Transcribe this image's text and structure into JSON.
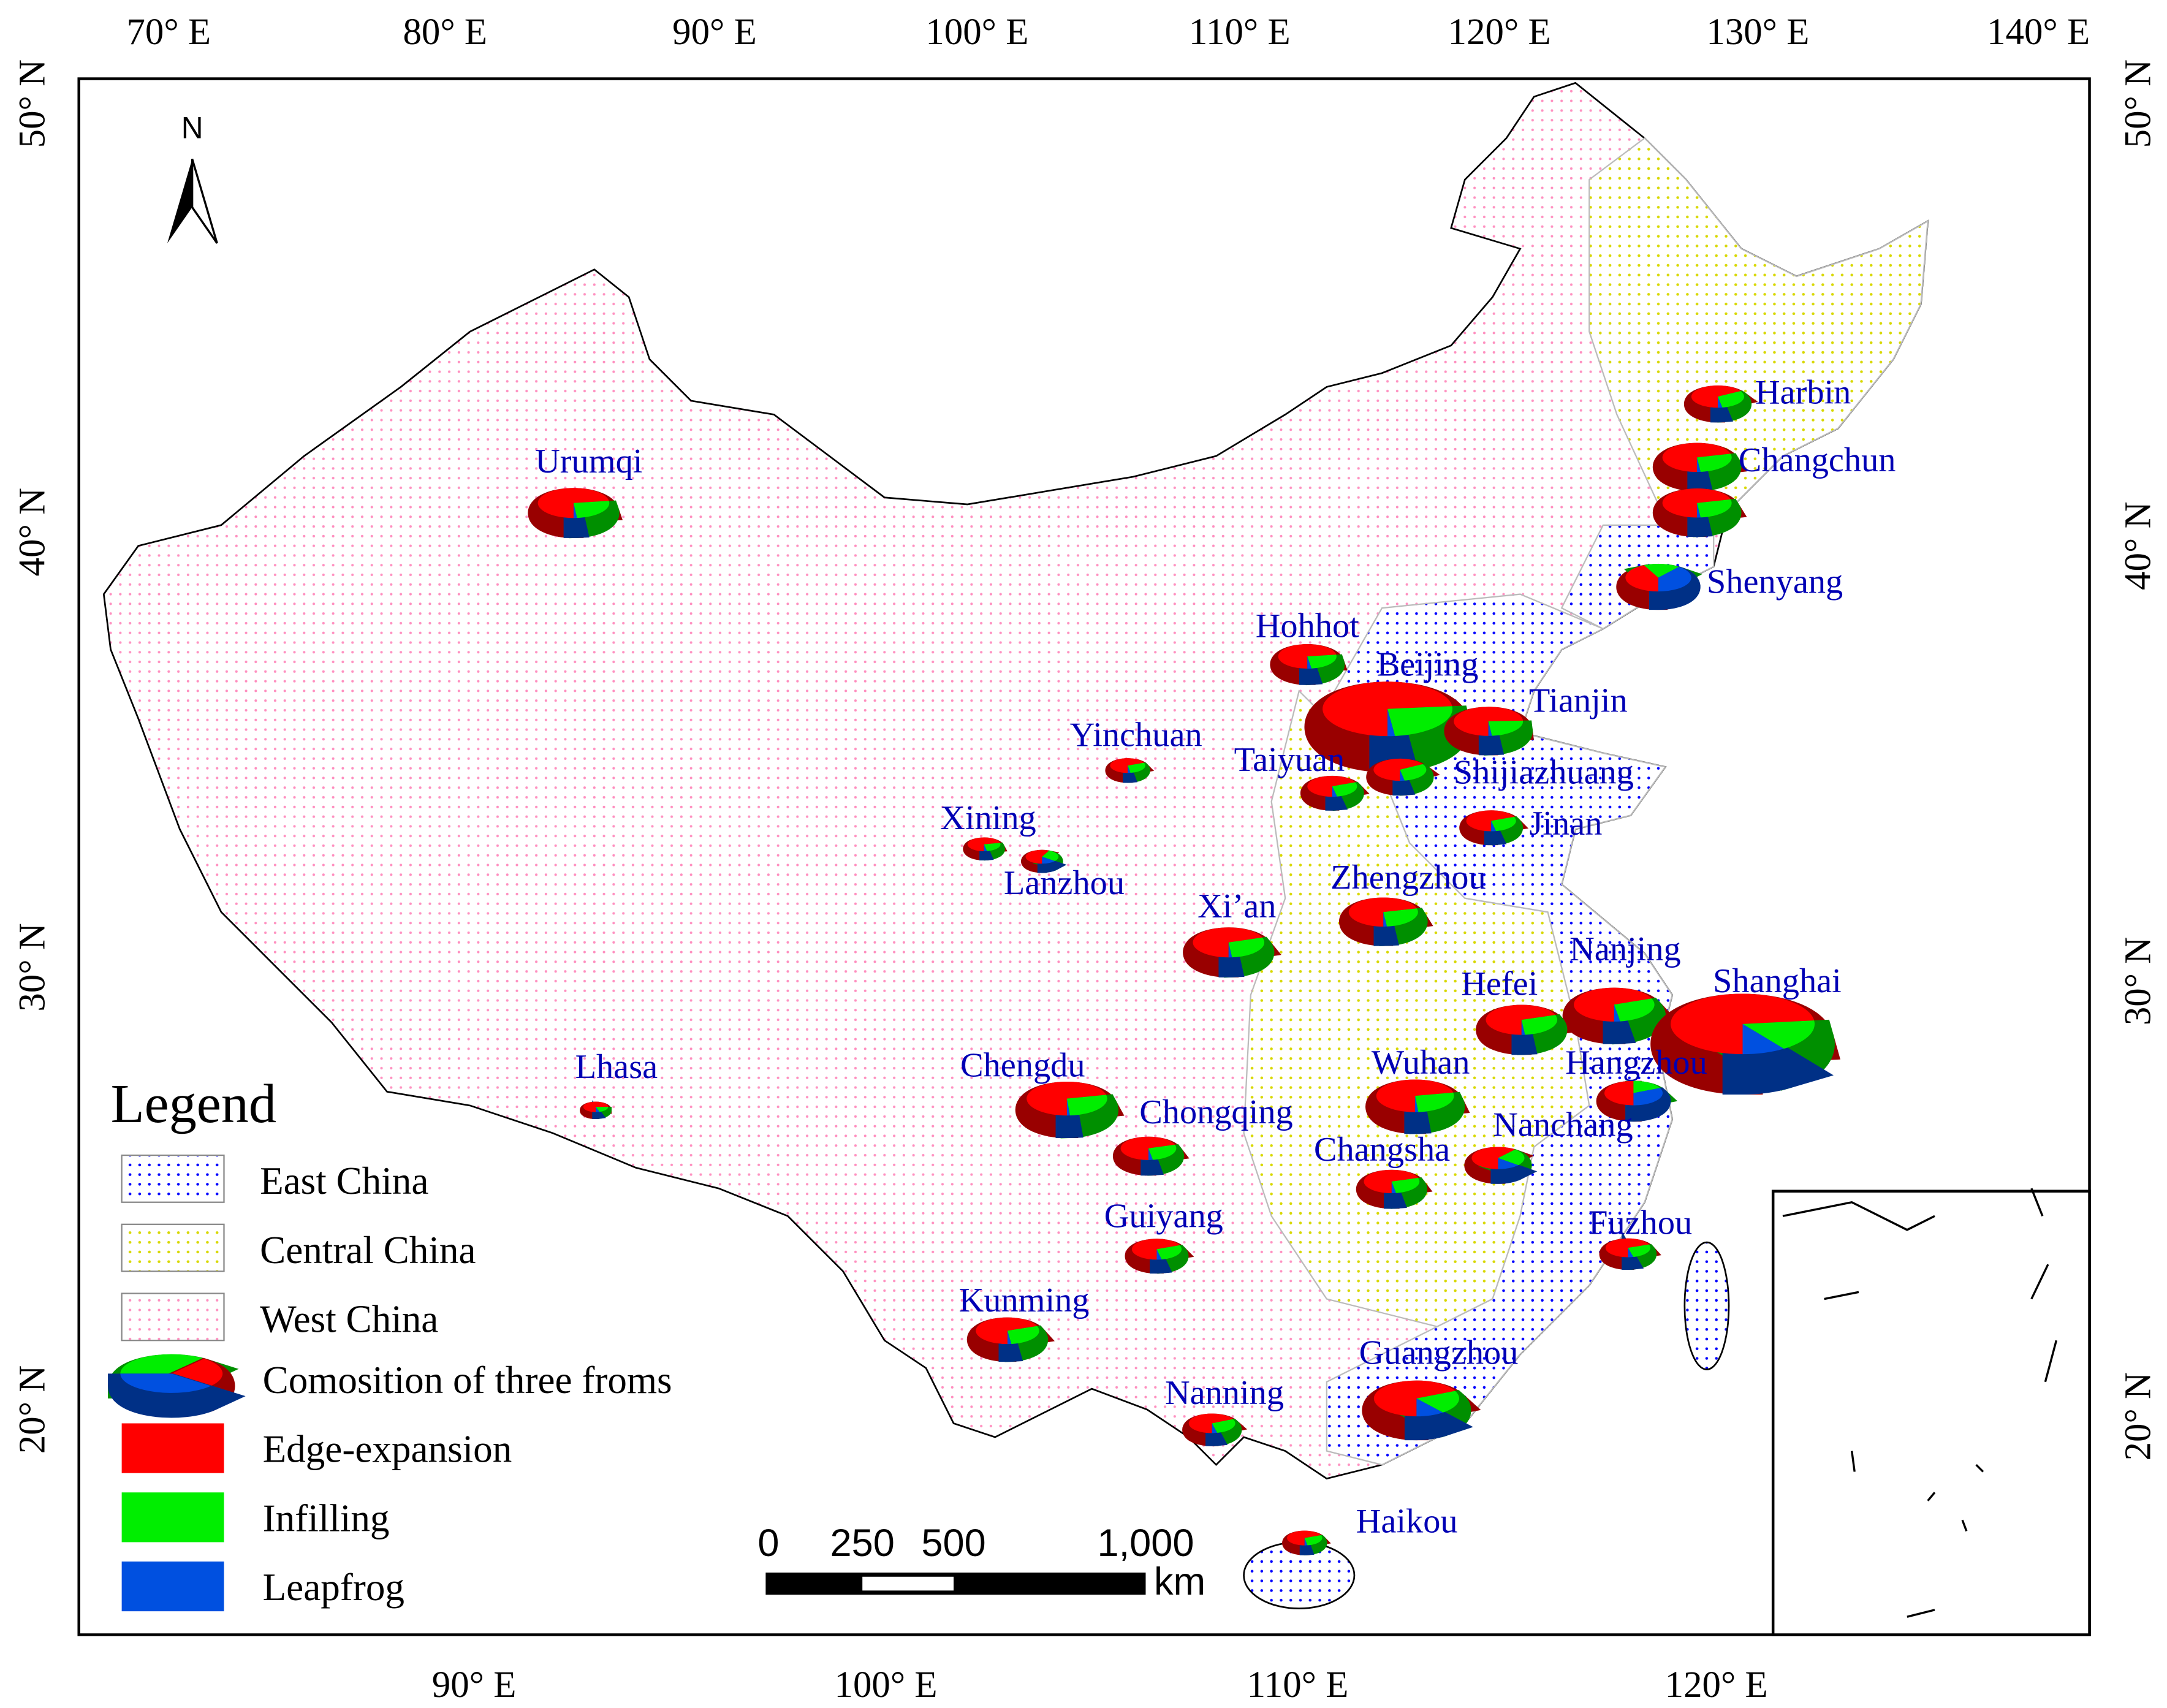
{
  "axes": {
    "top": [
      "70° E",
      "80° E",
      "90° E",
      "100° E",
      "110° E",
      "120° E",
      "130° E",
      "140° E"
    ],
    "bottom": [
      "90° E",
      "100° E",
      "110° E",
      "120° E"
    ],
    "left": [
      "50° N",
      "40° N",
      "30° N",
      "20° N"
    ],
    "right": [
      "50° N",
      "40° N",
      "30° N",
      "20° N"
    ]
  },
  "north": "N",
  "legend": {
    "title": "Legend",
    "regions": [
      {
        "name": "East China",
        "color": "#0000ff"
      },
      {
        "name": "Central China",
        "color": "#d8d800"
      },
      {
        "name": "West China",
        "color": "#ff80b0"
      }
    ],
    "pie_label": "Comosition of three froms",
    "series": [
      {
        "name": "Edge-expansion",
        "color": "#ff0000"
      },
      {
        "name": "Infilling",
        "color": "#00ee00"
      },
      {
        "name": "Leapfrog",
        "color": "#0050e0"
      }
    ]
  },
  "scale_bar": {
    "labels": [
      "0",
      "250",
      "500",
      "1,000"
    ],
    "unit": "km"
  },
  "cities": [
    {
      "name": "Harbin",
      "values": [
        12,
        5.5,
        0.5
      ]
    },
    {
      "name": "Changchun",
      "values": [
        22,
        8.5,
        0.5
      ]
    },
    {
      "name": null,
      "values": [
        22,
        8.5,
        0.5
      ]
    },
    {
      "name": "Shenyang",
      "values": [
        12,
        5,
        11
      ]
    },
    {
      "name": "Urumqi",
      "values": [
        24,
        8.5,
        0.5
      ]
    },
    {
      "name": "Hohhot",
      "values": [
        16,
        5.5,
        0.5
      ]
    },
    {
      "name": "Beijing",
      "values": [
        80,
        27,
        2
      ]
    },
    {
      "name": "Tianjin",
      "values": [
        23,
        7.5,
        0.5
      ]
    },
    {
      "name": "Taiyuan",
      "values": [
        11,
        4.5,
        0.5
      ]
    },
    {
      "name": "Shijiazhuang",
      "values": [
        12,
        5.5,
        0.5
      ]
    },
    {
      "name": "Yinchuan",
      "values": [
        5.5,
        2.3,
        0.2
      ]
    },
    {
      "name": "Xining",
      "values": [
        5,
        1.8,
        0.2
      ]
    },
    {
      "name": "Lanzhou",
      "values": [
        4,
        2,
        1
      ]
    },
    {
      "name": "Jinan",
      "values": [
        11,
        4.5,
        0.5
      ]
    },
    {
      "name": "Zhengzhou",
      "values": [
        22,
        8.5,
        0.5
      ]
    },
    {
      "name": "Xi’an",
      "values": [
        23,
        9.5,
        0.5
      ]
    },
    {
      "name": "Nanjing",
      "values": [
        29,
        12,
        1
      ]
    },
    {
      "name": "Shanghai",
      "values": [
        98,
        23,
        13
      ]
    },
    {
      "name": "Hefei",
      "values": [
        23,
        9.5,
        0.5
      ]
    },
    {
      "name": "Wuhan",
      "values": [
        28,
        10.5,
        0.5
      ]
    },
    {
      "name": "Hangzhou",
      "values": [
        11,
        4,
        7
      ]
    },
    {
      "name": "Lhasa",
      "values": [
        3,
        0.8,
        0.2
      ]
    },
    {
      "name": "Chengdu",
      "values": [
        30,
        11.5,
        0.5
      ]
    },
    {
      "name": "Chongqing",
      "values": [
        14,
        5.5,
        0.5
      ]
    },
    {
      "name": "Nanchang",
      "values": [
        11,
        4.5,
        2.5
      ]
    },
    {
      "name": "Changsha",
      "values": [
        14,
        5.5,
        0.5
      ]
    },
    {
      "name": "Fuzhou",
      "values": [
        9,
        3.5,
        0.5
      ]
    },
    {
      "name": "Guiyang",
      "values": [
        11,
        4.5,
        0.5
      ]
    },
    {
      "name": "Kunming",
      "values": [
        18,
        7.5,
        0.5
      ]
    },
    {
      "name": "Guangzhou",
      "values": [
        32,
        10,
        5
      ]
    },
    {
      "name": "Nanning",
      "values": [
        9.5,
        4,
        0.5
      ]
    },
    {
      "name": "Haikou",
      "values": [
        5.5,
        2.3,
        0.2
      ]
    }
  ]
}
